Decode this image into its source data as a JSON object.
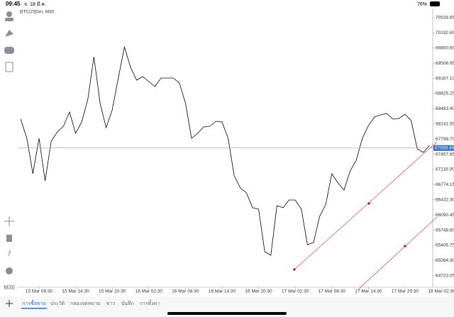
{
  "status_bar": {
    "time": "09:45",
    "date": "จ. 18 มี.ค.",
    "battery": "76%"
  },
  "side_toolbar": {
    "timeframe": "M30"
  },
  "tabs": [
    "การซื้อขาย",
    "ประวัติ",
    "กล่องจดหมาย",
    "ข่าว",
    "บันทึก",
    "การตั้งค่า"
  ],
  "chart_data": {
    "type": "line",
    "title": "BTCUSDm, M30",
    "categories": [
      null,
      null,
      null,
      "15 Mar 08:30",
      null,
      null,
      null,
      null,
      null,
      "15 Mar 14:30",
      null,
      null,
      null,
      null,
      null,
      "15 Mar 20:30",
      null,
      null,
      null,
      null,
      null,
      "16 Mar 02:30",
      null,
      null,
      null,
      null,
      null,
      "16 Mar 08:30",
      null,
      null,
      null,
      null,
      null,
      "16 Mar 14:30",
      null,
      null,
      null,
      null,
      null,
      "16 Mar 20:30",
      null,
      null,
      null,
      null,
      null,
      "17 Mar 02:30",
      null,
      null,
      null,
      null,
      null,
      "17 Mar 08:30",
      null,
      null,
      null,
      null,
      null,
      "17 Mar 14:30",
      null,
      null,
      null,
      null,
      null,
      "17 Mar 20:30",
      null,
      null,
      null,
      null,
      null,
      "18 Mar 02:30"
    ],
    "values": [
      68250,
      67819,
      67020,
      67819,
      66861,
      67755,
      67963,
      68091,
      68410,
      67931,
      68186,
      68698,
      69656,
      68618,
      68059,
      68458,
      69177,
      69880,
      69416,
      69129,
      69209,
      69097,
      68985,
      69177,
      69177,
      69177,
      69065,
      68618,
      67819,
      67931,
      68075,
      68091,
      68202,
      68186,
      67819,
      66972,
      66701,
      66589,
      66254,
      66222,
      65263,
      65183,
      66302,
      66254,
      66429,
      66429,
      66222,
      65423,
      65471,
      66062,
      66333,
      67020,
      66813,
      66653,
      67084,
      67324,
      67819,
      68107,
      68298,
      68346,
      68378,
      68250,
      68266,
      68362,
      68218,
      67579,
      67500,
      67659,
      null,
      null
    ],
    "color": "#000000",
    "current_price": 67599.49,
    "ylim": [
      64464,
      70742
    ],
    "yticks": [
      {
        "value": 64723.05,
        "label": "64723.05"
      },
      {
        "value": 65064.9,
        "label": "65064.90"
      },
      {
        "value": 65406.75,
        "label": "65406.75"
      },
      {
        "value": 65748.6,
        "label": "65748.60"
      },
      {
        "value": 66090.45,
        "label": "66090.45"
      },
      {
        "value": 66432.3,
        "label": "66432.30"
      },
      {
        "value": 66774.15,
        "label": "66774.15"
      },
      {
        "value": 67116,
        "label": "67116.00"
      },
      {
        "value": 67457.85,
        "label": "67457.85"
      },
      {
        "value": 67799.7,
        "label": "67799.70"
      },
      {
        "value": 68141.55,
        "label": "68141.55"
      },
      {
        "value": 68483.4,
        "label": "68483.40"
      },
      {
        "value": 68825.25,
        "label": "68825.25"
      },
      {
        "value": 69167.1,
        "label": "69167.10"
      },
      {
        "value": 69508.95,
        "label": "69508.95"
      },
      {
        "value": 69850.6,
        "label": "69850.60"
      },
      {
        "value": 70192.65,
        "label": "70192.65"
      },
      {
        "value": 70534.65,
        "label": "70534.65"
      }
    ]
  }
}
